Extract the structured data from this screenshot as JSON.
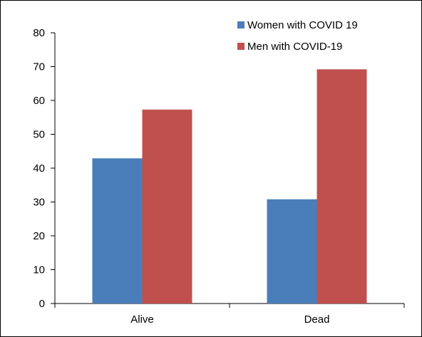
{
  "chart_data": {
    "type": "bar",
    "categories": [
      "Alive",
      "Dead"
    ],
    "series": [
      {
        "name": "Women with COVID 19",
        "values": [
          42.9,
          30.8
        ],
        "color": "#4a7ebb"
      },
      {
        "name": "Men with COVID-19",
        "values": [
          57.3,
          69.2
        ],
        "color": "#c0504d"
      }
    ],
    "ylim": [
      0,
      80
    ],
    "yticks": [
      "0",
      "10",
      "20",
      "30",
      "40",
      "50",
      "60",
      "70",
      "80"
    ],
    "legend_position": "top-right",
    "grid": false
  }
}
